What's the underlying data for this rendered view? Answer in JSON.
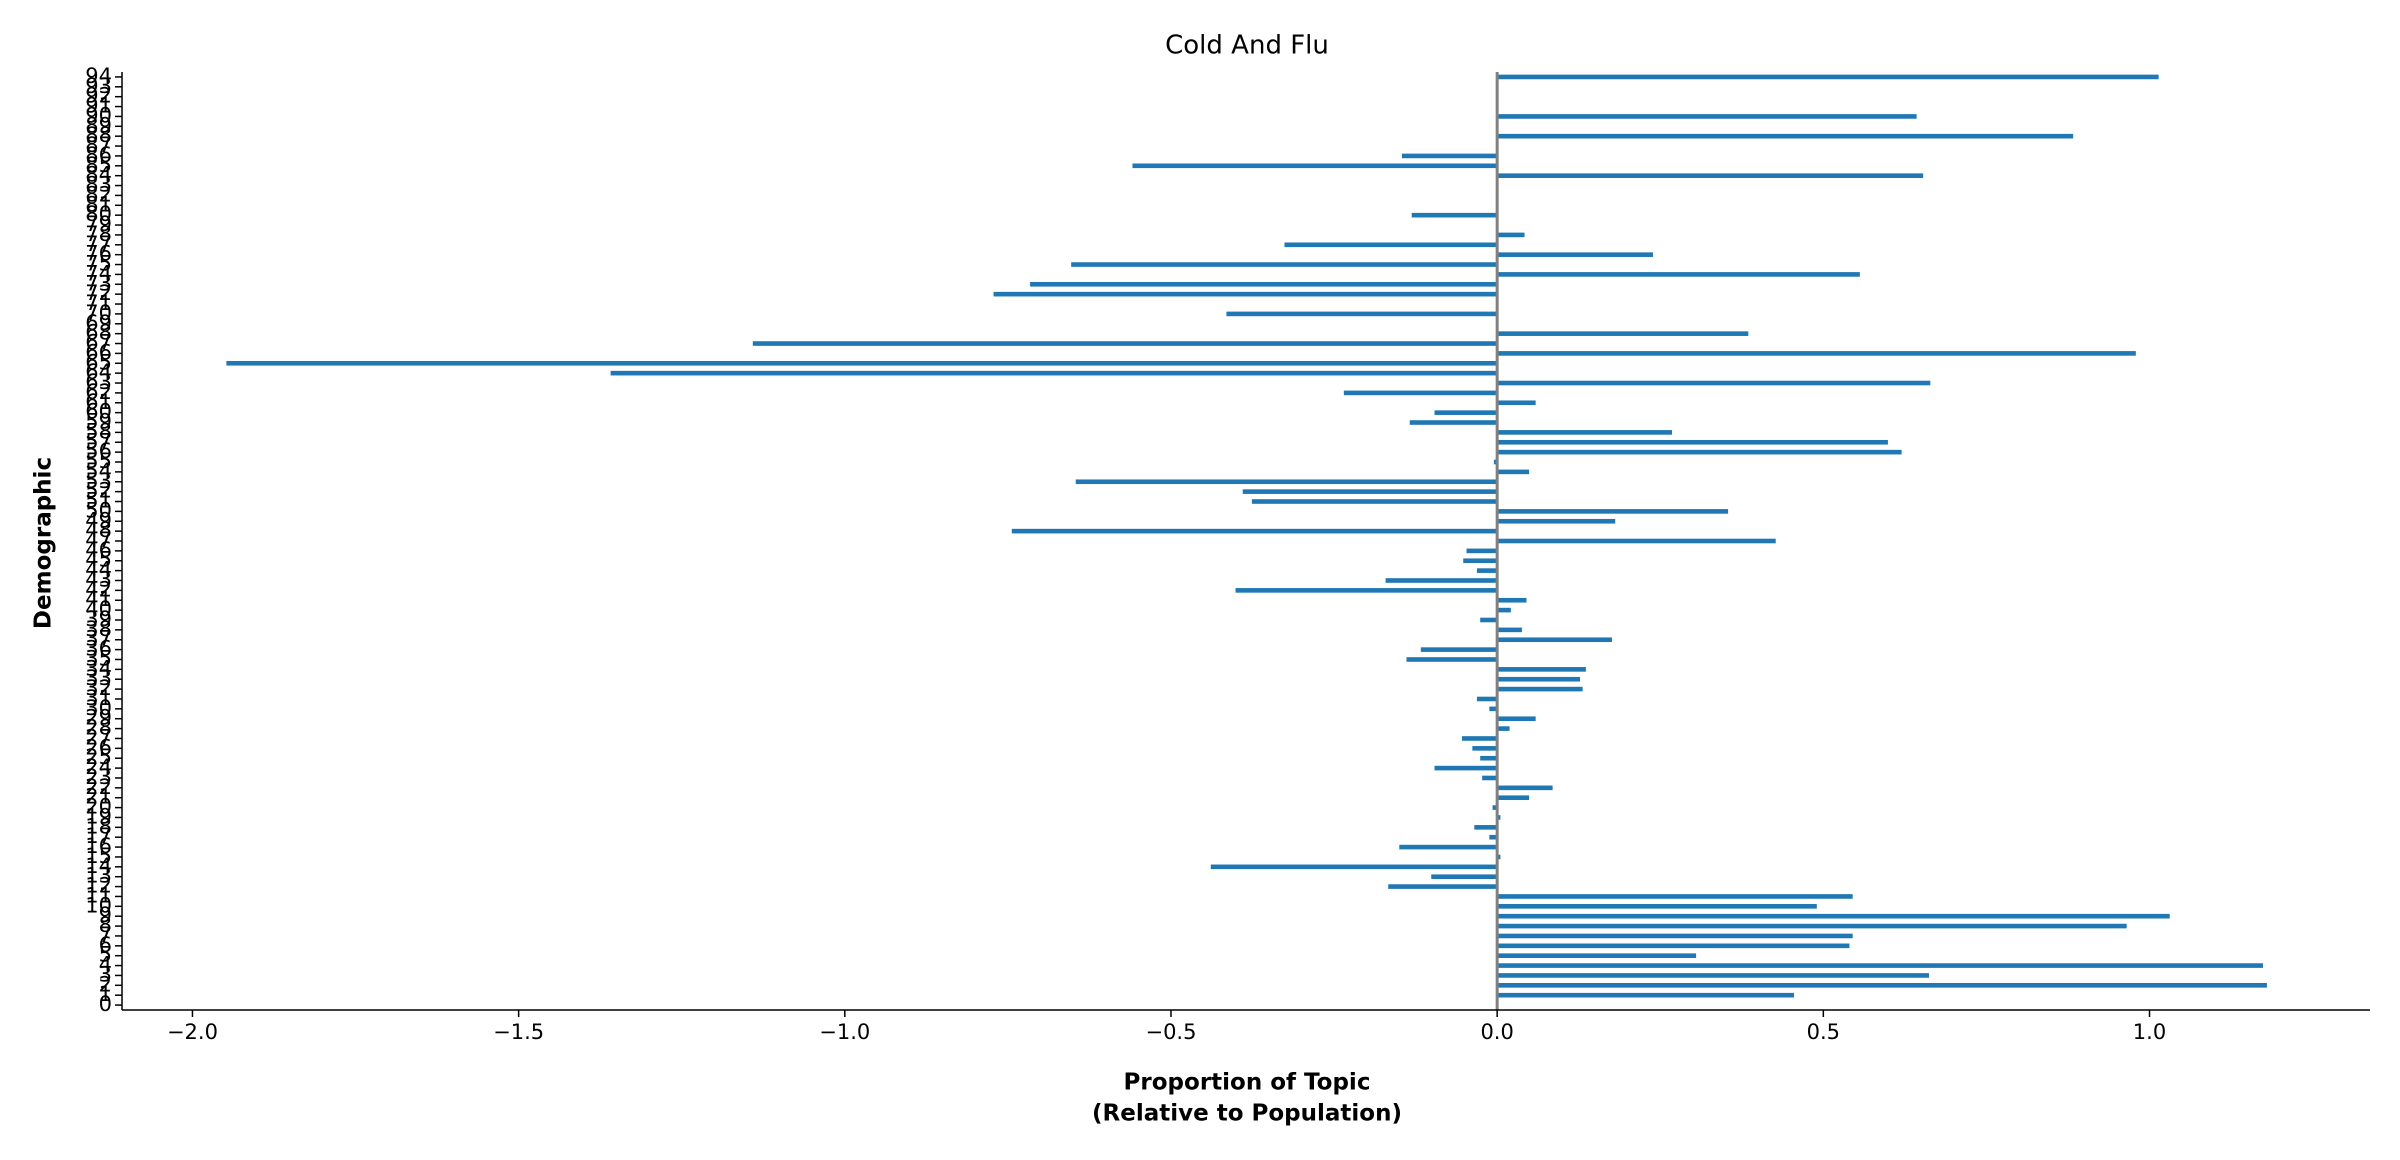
{
  "chart_data": {
    "type": "barh",
    "title": "Cold And Flu",
    "xlabel": [
      "Proportion of Topic",
      "(Relative to Population)"
    ],
    "ylabel": "Demographic",
    "categories": [
      "0",
      "1",
      "2",
      "3",
      "4",
      "5",
      "6",
      "7",
      "8",
      "9",
      "10",
      "11",
      "12",
      "13",
      "14",
      "15",
      "16",
      "17",
      "18",
      "19",
      "20",
      "21",
      "22",
      "23",
      "24",
      "25",
      "26",
      "27",
      "28",
      "29",
      "30",
      "31",
      "32",
      "33",
      "34",
      "35",
      "36",
      "37",
      "38",
      "39",
      "40",
      "41",
      "42",
      "43",
      "44",
      "45",
      "46",
      "47",
      "48",
      "49",
      "50",
      "51",
      "52",
      "53",
      "54",
      "55",
      "56",
      "57",
      "58",
      "59",
      "60",
      "61",
      "62",
      "63",
      "64",
      "65",
      "66",
      "67",
      "68",
      "69",
      "70",
      "71",
      "72",
      "73",
      "74",
      "75",
      "76",
      "77",
      "78",
      "79",
      "80",
      "81",
      "82",
      "83",
      "84",
      "85",
      "86",
      "87",
      "88",
      "89",
      "90",
      "91",
      "92",
      "93",
      "94"
    ],
    "values": [
      0,
      0.455,
      1.18,
      0.662,
      1.174,
      0.305,
      0.54,
      0.545,
      0.965,
      1.031,
      0.49,
      0.545,
      -0.167,
      -0.101,
      -0.439,
      0.005,
      -0.15,
      -0.012,
      -0.035,
      0.005,
      -0.007,
      0.049,
      0.085,
      -0.023,
      -0.096,
      -0.026,
      -0.038,
      -0.054,
      0.019,
      0.059,
      -0.012,
      -0.031,
      0.131,
      0.127,
      0.136,
      -0.139,
      -0.117,
      0.176,
      0.038,
      -0.026,
      0.021,
      0.045,
      -0.401,
      -0.171,
      -0.031,
      -0.052,
      -0.047,
      0.427,
      -0.744,
      0.181,
      0.354,
      -0.376,
      -0.39,
      -0.646,
      0.049,
      -0.005,
      0.62,
      0.599,
      0.268,
      -0.134,
      -0.096,
      0.059,
      -0.235,
      0.664,
      -1.359,
      -1.948,
      0.979,
      -1.141,
      0.385,
      0,
      -0.415,
      0,
      -0.772,
      -0.716,
      0.556,
      -0.653,
      0.239,
      -0.326,
      0.042,
      0,
      -0.131,
      0,
      0,
      0,
      0.653,
      -0.559,
      -0.146,
      0,
      0.883,
      0,
      0.643,
      0,
      0,
      0,
      1.014
    ],
    "color": "#1f77b4",
    "xlim": [
      -2.108,
      1.338
    ],
    "xticks": [
      {
        "value": -2,
        "label": "−2.0"
      },
      {
        "value": -1.5,
        "label": "−1.5"
      },
      {
        "value": -1,
        "label": "−1.0"
      },
      {
        "value": -0.5,
        "label": "−0.5"
      },
      {
        "value": 0,
        "label": "0.0"
      },
      0.5,
      {
        "value": 1,
        "label": "1.0"
      }
    ],
    "grid": false
  }
}
